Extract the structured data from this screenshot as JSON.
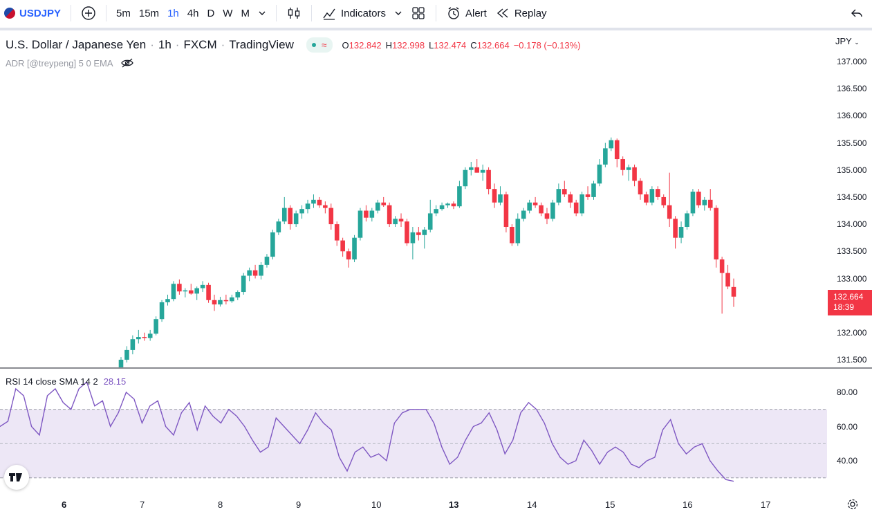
{
  "toolbar": {
    "symbol": "USDJPY",
    "timeframes": [
      "5m",
      "15m",
      "1h",
      "4h",
      "D",
      "W",
      "M"
    ],
    "active_timeframe": "1h",
    "indicators_label": "Indicators",
    "alert_label": "Alert",
    "replay_label": "Replay"
  },
  "legend": {
    "title": "U.S. Dollar / Japanese Yen",
    "interval": "1h",
    "exchange": "FXCM",
    "source": "TradingView",
    "open_label": "O",
    "open": "132.842",
    "high_label": "H",
    "high": "132.998",
    "low_label": "L",
    "low": "132.474",
    "close_label": "C",
    "close": "132.664",
    "change": "−0.178 (−0.13%)",
    "indicator": "ADR [@treypeng] 5 0 EMA"
  },
  "price_axis": {
    "currency": "JPY",
    "ticks": [
      "137.000",
      "136.500",
      "136.000",
      "135.500",
      "135.000",
      "134.500",
      "134.000",
      "133.500",
      "133.000",
      "132.000",
      "131.500"
    ],
    "current_price": "132.664",
    "countdown": "18:39"
  },
  "rsi": {
    "label": "RSI 14 close SMA 14 2",
    "value": "28.15",
    "ticks": [
      "80.00",
      "60.00",
      "40.00"
    ],
    "upper_band": 70,
    "lower_band": 30,
    "middle_band": 50
  },
  "time_axis": {
    "labels": [
      "6",
      "7",
      "8",
      "9",
      "10",
      "13",
      "14",
      "15",
      "16",
      "17"
    ]
  },
  "colors": {
    "up": "#26a69a",
    "down": "#f23645",
    "rsi_line": "#7e57c2",
    "rsi_band": "#ede7f6",
    "accent": "#2962ff"
  },
  "chart_data": {
    "type": "candlestick",
    "ylim": [
      131.35,
      137.25
    ],
    "rsi_close": [
      60,
      63,
      82,
      78,
      60,
      55,
      78,
      82,
      74,
      70,
      82,
      86,
      72,
      75,
      60,
      68,
      80,
      76,
      62,
      72,
      75,
      60,
      55,
      68,
      74,
      58,
      72,
      66,
      62,
      70,
      66,
      60,
      52,
      45,
      48,
      65,
      60,
      55,
      50,
      58,
      68,
      62,
      58,
      42,
      34,
      45,
      48,
      42,
      44,
      40,
      62,
      68,
      70,
      70,
      70,
      62,
      48,
      38,
      42,
      52,
      60,
      62,
      68,
      58,
      44,
      52,
      68,
      74,
      70,
      62,
      50,
      42,
      38,
      40,
      52,
      46,
      38,
      45,
      48,
      45,
      38,
      36,
      40,
      42,
      58,
      64,
      50,
      44,
      48,
      50,
      40,
      34,
      29,
      28
    ],
    "candles": [
      {
        "o": 131.35,
        "h": 131.55,
        "l": 131.3,
        "c": 131.5
      },
      {
        "o": 131.5,
        "h": 131.75,
        "l": 131.45,
        "c": 131.68
      },
      {
        "o": 131.68,
        "h": 131.95,
        "l": 131.6,
        "c": 131.88
      },
      {
        "o": 131.88,
        "h": 132.05,
        "l": 131.8,
        "c": 131.92
      },
      {
        "o": 131.92,
        "h": 132.0,
        "l": 131.85,
        "c": 131.9
      },
      {
        "o": 131.9,
        "h": 132.05,
        "l": 131.85,
        "c": 131.98
      },
      {
        "o": 131.98,
        "h": 132.3,
        "l": 131.95,
        "c": 132.25
      },
      {
        "o": 132.25,
        "h": 132.6,
        "l": 132.2,
        "c": 132.56
      },
      {
        "o": 132.56,
        "h": 132.7,
        "l": 132.5,
        "c": 132.62
      },
      {
        "o": 132.62,
        "h": 132.95,
        "l": 132.58,
        "c": 132.9
      },
      {
        "o": 132.9,
        "h": 132.98,
        "l": 132.7,
        "c": 132.76
      },
      {
        "o": 132.76,
        "h": 132.82,
        "l": 132.65,
        "c": 132.78
      },
      {
        "o": 132.78,
        "h": 132.9,
        "l": 132.7,
        "c": 132.72
      },
      {
        "o": 132.72,
        "h": 132.85,
        "l": 132.6,
        "c": 132.82
      },
      {
        "o": 132.82,
        "h": 132.95,
        "l": 132.75,
        "c": 132.88
      },
      {
        "o": 132.88,
        "h": 132.92,
        "l": 132.55,
        "c": 132.6
      },
      {
        "o": 132.6,
        "h": 132.7,
        "l": 132.4,
        "c": 132.52
      },
      {
        "o": 132.52,
        "h": 132.66,
        "l": 132.48,
        "c": 132.6
      },
      {
        "o": 132.6,
        "h": 132.7,
        "l": 132.52,
        "c": 132.58
      },
      {
        "o": 132.58,
        "h": 132.7,
        "l": 132.55,
        "c": 132.65
      },
      {
        "o": 132.65,
        "h": 132.78,
        "l": 132.6,
        "c": 132.75
      },
      {
        "o": 132.75,
        "h": 133.1,
        "l": 132.7,
        "c": 133.05
      },
      {
        "o": 133.05,
        "h": 133.2,
        "l": 132.95,
        "c": 133.15
      },
      {
        "o": 133.15,
        "h": 133.25,
        "l": 133.0,
        "c": 133.05
      },
      {
        "o": 133.05,
        "h": 133.3,
        "l": 132.98,
        "c": 133.25
      },
      {
        "o": 133.25,
        "h": 133.45,
        "l": 133.2,
        "c": 133.4
      },
      {
        "o": 133.4,
        "h": 133.9,
        "l": 133.35,
        "c": 133.85
      },
      {
        "o": 133.85,
        "h": 134.1,
        "l": 133.8,
        "c": 134.05
      },
      {
        "o": 134.05,
        "h": 134.5,
        "l": 134.0,
        "c": 134.3
      },
      {
        "o": 134.3,
        "h": 134.35,
        "l": 133.9,
        "c": 134.0
      },
      {
        "o": 134.0,
        "h": 134.25,
        "l": 133.95,
        "c": 134.2
      },
      {
        "o": 134.2,
        "h": 134.35,
        "l": 134.1,
        "c": 134.28
      },
      {
        "o": 134.28,
        "h": 134.45,
        "l": 134.2,
        "c": 134.38
      },
      {
        "o": 134.38,
        "h": 134.55,
        "l": 134.3,
        "c": 134.45
      },
      {
        "o": 134.45,
        "h": 134.5,
        "l": 134.3,
        "c": 134.35
      },
      {
        "o": 134.35,
        "h": 134.42,
        "l": 134.2,
        "c": 134.3
      },
      {
        "o": 134.3,
        "h": 134.38,
        "l": 133.9,
        "c": 134.0
      },
      {
        "o": 134.0,
        "h": 134.05,
        "l": 133.6,
        "c": 133.7
      },
      {
        "o": 133.7,
        "h": 133.75,
        "l": 133.4,
        "c": 133.5
      },
      {
        "o": 133.5,
        "h": 133.55,
        "l": 133.2,
        "c": 133.35
      },
      {
        "o": 133.35,
        "h": 133.8,
        "l": 133.3,
        "c": 133.75
      },
      {
        "o": 133.75,
        "h": 134.3,
        "l": 133.7,
        "c": 134.25
      },
      {
        "o": 134.25,
        "h": 134.35,
        "l": 134.05,
        "c": 134.12
      },
      {
        "o": 134.12,
        "h": 134.3,
        "l": 134.05,
        "c": 134.25
      },
      {
        "o": 134.25,
        "h": 134.45,
        "l": 134.2,
        "c": 134.4
      },
      {
        "o": 134.4,
        "h": 134.5,
        "l": 134.32,
        "c": 134.35
      },
      {
        "o": 134.35,
        "h": 134.4,
        "l": 133.95,
        "c": 134.0
      },
      {
        "o": 134.0,
        "h": 134.15,
        "l": 133.95,
        "c": 134.1
      },
      {
        "o": 134.1,
        "h": 134.2,
        "l": 133.95,
        "c": 134.05
      },
      {
        "o": 134.05,
        "h": 134.1,
        "l": 133.6,
        "c": 133.65
      },
      {
        "o": 133.65,
        "h": 133.95,
        "l": 133.35,
        "c": 133.85
      },
      {
        "o": 133.85,
        "h": 133.95,
        "l": 133.7,
        "c": 133.8
      },
      {
        "o": 133.8,
        "h": 133.95,
        "l": 133.55,
        "c": 133.9
      },
      {
        "o": 133.9,
        "h": 134.45,
        "l": 133.85,
        "c": 134.2
      },
      {
        "o": 134.2,
        "h": 134.35,
        "l": 134.15,
        "c": 134.28
      },
      {
        "o": 134.28,
        "h": 134.4,
        "l": 134.25,
        "c": 134.35
      },
      {
        "o": 134.35,
        "h": 134.4,
        "l": 134.3,
        "c": 134.38
      },
      {
        "o": 134.38,
        "h": 134.42,
        "l": 134.28,
        "c": 134.33
      },
      {
        "o": 134.33,
        "h": 134.8,
        "l": 134.3,
        "c": 134.7
      },
      {
        "o": 134.7,
        "h": 135.05,
        "l": 134.65,
        "c": 135.0
      },
      {
        "o": 135.0,
        "h": 135.15,
        "l": 134.9,
        "c": 135.05
      },
      {
        "o": 135.05,
        "h": 135.2,
        "l": 134.95,
        "c": 134.95
      },
      {
        "o": 134.95,
        "h": 135.1,
        "l": 134.8,
        "c": 135.0
      },
      {
        "o": 135.0,
        "h": 135.05,
        "l": 134.55,
        "c": 134.65
      },
      {
        "o": 134.65,
        "h": 134.75,
        "l": 134.3,
        "c": 134.4
      },
      {
        "o": 134.4,
        "h": 134.7,
        "l": 134.35,
        "c": 134.55
      },
      {
        "o": 134.55,
        "h": 134.6,
        "l": 133.85,
        "c": 133.95
      },
      {
        "o": 133.95,
        "h": 134.0,
        "l": 133.6,
        "c": 133.65
      },
      {
        "o": 133.65,
        "h": 134.2,
        "l": 133.6,
        "c": 134.1
      },
      {
        "o": 134.1,
        "h": 134.3,
        "l": 134.05,
        "c": 134.25
      },
      {
        "o": 134.25,
        "h": 134.45,
        "l": 134.2,
        "c": 134.4
      },
      {
        "o": 134.4,
        "h": 134.5,
        "l": 134.3,
        "c": 134.35
      },
      {
        "o": 134.35,
        "h": 134.4,
        "l": 134.15,
        "c": 134.2
      },
      {
        "o": 134.2,
        "h": 134.3,
        "l": 134.0,
        "c": 134.1
      },
      {
        "o": 134.1,
        "h": 134.45,
        "l": 134.05,
        "c": 134.4
      },
      {
        "o": 134.4,
        "h": 134.75,
        "l": 134.35,
        "c": 134.65
      },
      {
        "o": 134.65,
        "h": 134.8,
        "l": 134.5,
        "c": 134.55
      },
      {
        "o": 134.55,
        "h": 134.6,
        "l": 134.3,
        "c": 134.4
      },
      {
        "o": 134.4,
        "h": 134.45,
        "l": 134.15,
        "c": 134.2
      },
      {
        "o": 134.2,
        "h": 134.6,
        "l": 134.15,
        "c": 134.55
      },
      {
        "o": 134.55,
        "h": 134.7,
        "l": 134.45,
        "c": 134.5
      },
      {
        "o": 134.5,
        "h": 134.8,
        "l": 134.45,
        "c": 134.75
      },
      {
        "o": 134.75,
        "h": 135.2,
        "l": 134.7,
        "c": 135.1
      },
      {
        "o": 135.1,
        "h": 135.5,
        "l": 135.05,
        "c": 135.4
      },
      {
        "o": 135.4,
        "h": 135.6,
        "l": 135.35,
        "c": 135.55
      },
      {
        "o": 135.55,
        "h": 135.58,
        "l": 135.05,
        "c": 135.2
      },
      {
        "o": 135.2,
        "h": 135.25,
        "l": 134.9,
        "c": 135.0
      },
      {
        "o": 135.0,
        "h": 135.1,
        "l": 134.8,
        "c": 135.05
      },
      {
        "o": 135.05,
        "h": 135.1,
        "l": 134.7,
        "c": 134.8
      },
      {
        "o": 134.8,
        "h": 134.85,
        "l": 134.45,
        "c": 134.55
      },
      {
        "o": 134.55,
        "h": 134.6,
        "l": 134.35,
        "c": 134.4
      },
      {
        "o": 134.4,
        "h": 134.7,
        "l": 134.35,
        "c": 134.65
      },
      {
        "o": 134.65,
        "h": 134.7,
        "l": 134.45,
        "c": 134.5
      },
      {
        "o": 134.5,
        "h": 134.55,
        "l": 134.3,
        "c": 134.35
      },
      {
        "o": 134.35,
        "h": 134.95,
        "l": 133.95,
        "c": 134.1
      },
      {
        "o": 134.1,
        "h": 134.15,
        "l": 133.55,
        "c": 133.75
      },
      {
        "o": 133.75,
        "h": 134.05,
        "l": 133.65,
        "c": 133.95
      },
      {
        "o": 133.95,
        "h": 134.25,
        "l": 133.9,
        "c": 134.2
      },
      {
        "o": 134.2,
        "h": 134.65,
        "l": 134.15,
        "c": 134.6
      },
      {
        "o": 134.6,
        "h": 134.65,
        "l": 134.3,
        "c": 134.35
      },
      {
        "o": 134.35,
        "h": 134.5,
        "l": 134.25,
        "c": 134.45
      },
      {
        "o": 134.45,
        "h": 134.65,
        "l": 134.25,
        "c": 134.3
      },
      {
        "o": 134.3,
        "h": 134.35,
        "l": 133.2,
        "c": 133.35
      },
      {
        "o": 133.35,
        "h": 133.4,
        "l": 132.35,
        "c": 133.1
      },
      {
        "o": 133.1,
        "h": 133.25,
        "l": 132.8,
        "c": 132.85
      },
      {
        "o": 132.842,
        "h": 132.998,
        "l": 132.474,
        "c": 132.664
      }
    ]
  }
}
